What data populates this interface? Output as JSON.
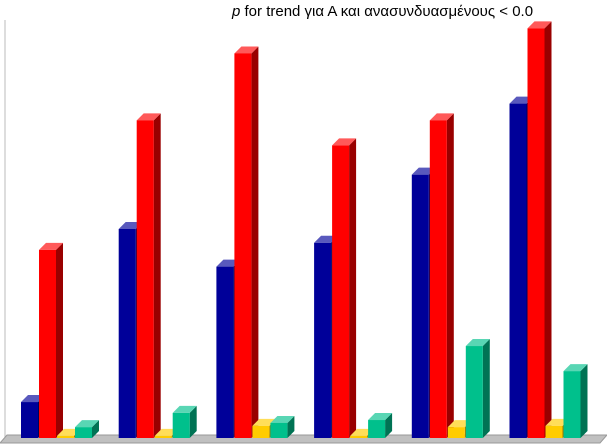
{
  "chart_data": {
    "type": "bar3d",
    "title": [
      "p",
      "for trend για Α και ανασυνδυασμένους < 0.0"
    ],
    "categories": [
      null,
      null,
      null,
      null,
      null,
      null
    ],
    "ylim": [
      0,
      100
    ],
    "series": [
      {
        "color": "#000099",
        "values": [
          8.6,
          50,
          41,
          46.7,
          63,
          80
        ]
      },
      {
        "color": "#ff0000",
        "values": [
          45,
          76,
          92,
          70,
          76,
          98
        ]
      },
      {
        "color": "#ffcc00",
        "values": [
          0.5,
          0.5,
          2.9,
          0.5,
          2.6,
          2.9
        ]
      },
      {
        "color": "#00c08c",
        "values": [
          2.6,
          6,
          3.6,
          4.3,
          22,
          16
        ]
      }
    ]
  }
}
